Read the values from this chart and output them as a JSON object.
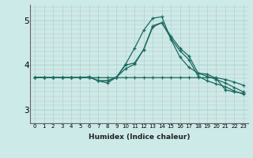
{
  "xlabel": "Humidex (Indice chaleur)",
  "ylabel": "",
  "background_color": "#cceae8",
  "grid_color": "#aad4d2",
  "line_color": "#1a6b60",
  "xlim": [
    -0.5,
    23.5
  ],
  "ylim": [
    2.7,
    5.35
  ],
  "yticks": [
    3,
    4,
    5
  ],
  "xticks": [
    0,
    1,
    2,
    3,
    4,
    5,
    6,
    7,
    8,
    9,
    10,
    11,
    12,
    13,
    14,
    15,
    16,
    17,
    18,
    19,
    20,
    21,
    22,
    23
  ],
  "series": {
    "line1": {
      "x": [
        0,
        1,
        2,
        3,
        4,
        5,
        6,
        7,
        8,
        9,
        10,
        11,
        12,
        13,
        14,
        15,
        16,
        17,
        18,
        19,
        20,
        21,
        22,
        23
      ],
      "y": [
        3.73,
        3.72,
        3.72,
        3.72,
        3.72,
        3.72,
        3.72,
        3.72,
        3.72,
        3.72,
        3.72,
        3.72,
        3.72,
        3.72,
        3.72,
        3.72,
        3.72,
        3.72,
        3.72,
        3.72,
        3.72,
        3.68,
        3.62,
        3.55
      ]
    },
    "line2": {
      "x": [
        0,
        1,
        2,
        3,
        4,
        5,
        6,
        7,
        8,
        9,
        10,
        11,
        12,
        13,
        14,
        15,
        16,
        17,
        18,
        19,
        20,
        21,
        22,
        23
      ],
      "y": [
        3.73,
        3.72,
        3.72,
        3.72,
        3.72,
        3.72,
        3.73,
        3.65,
        3.65,
        3.73,
        4.0,
        4.05,
        4.35,
        4.88,
        4.95,
        4.65,
        4.38,
        4.2,
        3.82,
        3.75,
        3.68,
        3.6,
        3.5,
        3.4
      ]
    },
    "line3": {
      "x": [
        0,
        1,
        2,
        3,
        4,
        5,
        6,
        7,
        8,
        9,
        10,
        11,
        12,
        13,
        14,
        15,
        16,
        17,
        18,
        19,
        20,
        21,
        22,
        23
      ],
      "y": [
        3.73,
        3.72,
        3.72,
        3.72,
        3.72,
        3.72,
        3.74,
        3.65,
        3.6,
        3.73,
        4.02,
        4.38,
        4.78,
        5.05,
        5.08,
        4.58,
        4.18,
        3.95,
        3.82,
        3.8,
        3.7,
        3.45,
        3.4,
        3.37
      ]
    },
    "line4": {
      "x": [
        0,
        1,
        2,
        3,
        4,
        5,
        6,
        7,
        8,
        9,
        10,
        11,
        12,
        13,
        14,
        15,
        16,
        17,
        18,
        19,
        20,
        21,
        22,
        23
      ],
      "y": [
        3.73,
        3.72,
        3.72,
        3.72,
        3.72,
        3.72,
        3.73,
        3.65,
        3.65,
        3.73,
        3.92,
        4.02,
        4.35,
        4.85,
        4.95,
        4.6,
        4.32,
        4.12,
        3.75,
        3.65,
        3.58,
        3.52,
        3.42,
        3.35
      ]
    }
  }
}
